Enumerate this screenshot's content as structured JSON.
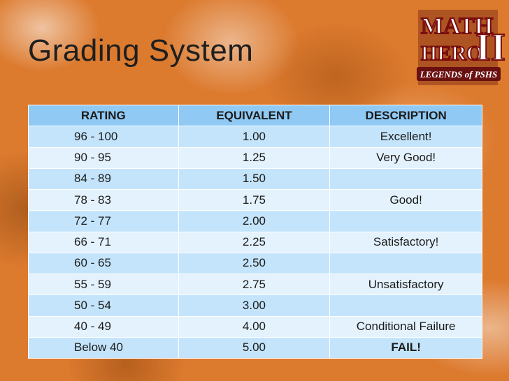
{
  "slide": {
    "title": "Grading System",
    "logo_text": {
      "line1": "MATH",
      "line2": "HERO",
      "numeral": "III",
      "tagline": "LEGENDS of PSHS"
    }
  },
  "table": {
    "headers": [
      "RATING",
      "EQUIVALENT",
      "DESCRIPTION"
    ],
    "rows": [
      {
        "rating": "96 - 100",
        "equivalent": "1.00",
        "description": "Excellent!"
      },
      {
        "rating": "90 - 95",
        "equivalent": "1.25",
        "description": "Very Good!"
      },
      {
        "rating": "84 - 89",
        "equivalent": "1.50",
        "description": ""
      },
      {
        "rating": "78 - 83",
        "equivalent": "1.75",
        "description": "Good!"
      },
      {
        "rating": "72 - 77",
        "equivalent": "2.00",
        "description": ""
      },
      {
        "rating": "66 - 71",
        "equivalent": "2.25",
        "description": "Satisfactory!"
      },
      {
        "rating": "60 - 65",
        "equivalent": "2.50",
        "description": ""
      },
      {
        "rating": "55 - 59",
        "equivalent": "2.75",
        "description": "Unsatisfactory"
      },
      {
        "rating": "50 - 54",
        "equivalent": "3.00",
        "description": ""
      },
      {
        "rating": "40 - 49",
        "equivalent": "4.00",
        "description": "Conditional Failure"
      },
      {
        "rating": "Below 40",
        "equivalent": "5.00",
        "description": "FAIL!"
      }
    ]
  },
  "colors": {
    "background": "#dc7a2e",
    "header_fill": "#90c9f4",
    "row_dark": "#c4e4fb",
    "row_light": "#e3f2fd"
  }
}
